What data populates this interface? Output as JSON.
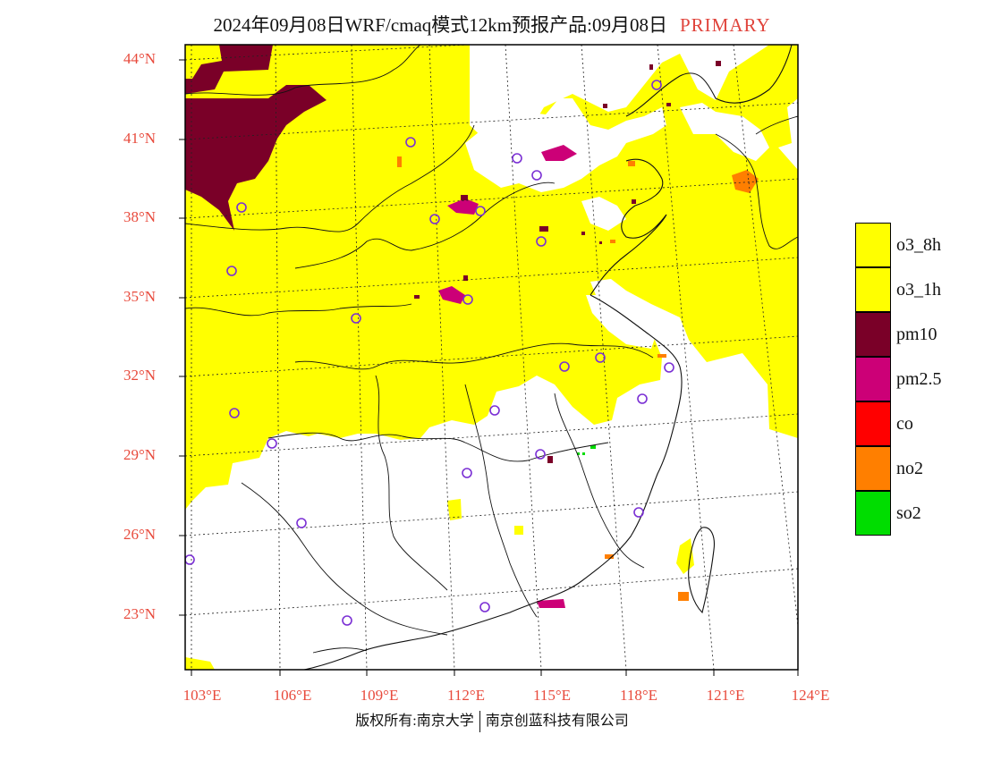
{
  "title": {
    "main": "2024年09月08日WRF/cmaq模式12km预报产品:09月08日",
    "tag": "PRIMARY"
  },
  "map": {
    "lat_labels": [
      "44°N",
      "41°N",
      "38°N",
      "35°N",
      "32°N",
      "29°N",
      "26°N",
      "23°N"
    ],
    "lon_labels": [
      "103°E",
      "106°E",
      "109°E",
      "112°E",
      "115°E",
      "118°E",
      "121°E",
      "124°E"
    ],
    "colors": {
      "o3": "#ffff00",
      "pm10": "#7a0028",
      "pm25": "#cc0077",
      "co": "#ff0000",
      "no2": "#ff7f00",
      "so2": "#00dd00",
      "station": "#7a2fd4",
      "lat_lon_label": "#e84a3c"
    }
  },
  "legend": [
    {
      "label": "o3_8h",
      "color": "#ffff00"
    },
    {
      "label": "o3_1h",
      "color": "#ffff00"
    },
    {
      "label": "pm10",
      "color": "#7a0028"
    },
    {
      "label": "pm2.5",
      "color": "#cc0077"
    },
    {
      "label": "co",
      "color": "#ff0000"
    },
    {
      "label": "no2",
      "color": "#ff7f00"
    },
    {
      "label": "so2",
      "color": "#00dd00"
    }
  ],
  "footer": {
    "left": "版权所有:南京大学",
    "right": "南京创蓝科技有限公司"
  }
}
